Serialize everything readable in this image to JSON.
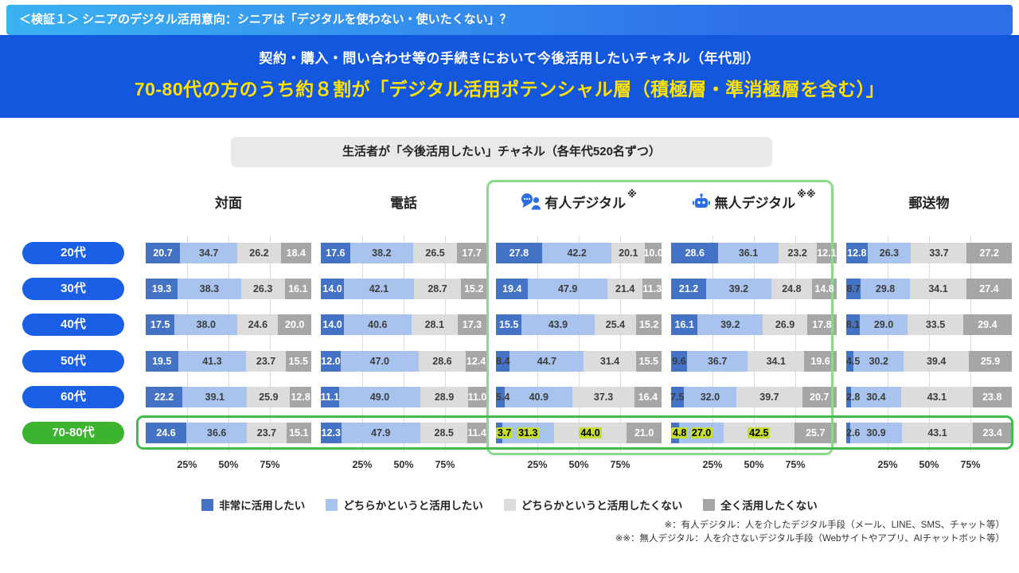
{
  "header": {
    "top_label": "＜検証１＞ シニアのデジタル活用意向：シニアは「デジタルを使わない・使いたくない」？",
    "subtitle": "契約・購入・問い合わせ等の手続きにおいて今後活用したいチャネル（年代別）",
    "headline": "70-80代の方のうち約８割が「デジタル活用ポテンシャル層（積極層・準消極層を含む）」"
  },
  "chart_title": "生活者が「今後活用したい」チャネル（各年代520名ずつ）",
  "colors": {
    "band_blue": "#1457DF",
    "headline_yellow": "#FFE200",
    "pill_blue": "#1A5FE6",
    "pill_green": "#3CB42F",
    "frame_green_light": "#8BD88F",
    "frame_green": "#43BC4D",
    "highlight": "#C4DD2E"
  },
  "legend": [
    {
      "label": "非常に活用したい",
      "color": "#4472C4"
    },
    {
      "label": "どちらかというと活用したい",
      "color": "#A8C4EE"
    },
    {
      "label": "どちらかというと活用したくない",
      "color": "#DCDCDC"
    },
    {
      "label": "全く活用したくない",
      "color": "#A6A6A6"
    }
  ],
  "footnotes": [
    "※：有人デジタル：人を介したデジタル手段（メール、LINE、SMS、チャット等）",
    "※※：無人デジタル：人を介さないデジタル手段（Webサイトやアプリ、AIチャットボット等）"
  ],
  "chart_data": {
    "type": "bar",
    "stacked": true,
    "orientation": "horizontal",
    "unit": "%",
    "xlim": [
      0,
      100
    ],
    "x_ticks": [
      "25%",
      "50%",
      "75%"
    ],
    "age_groups": [
      "20代",
      "30代",
      "40代",
      "50代",
      "60代",
      "70-80代"
    ],
    "segments": [
      "非常に活用したい",
      "どちらかというと活用したい",
      "どちらかというと活用したくない",
      "全く活用したくない"
    ],
    "segment_colors": [
      "#4472C4",
      "#A8C4EE",
      "#DCDCDC",
      "#A6A6A6"
    ],
    "channels": [
      {
        "name": "対面",
        "rows": [
          [
            20.7,
            34.7,
            26.2,
            18.4
          ],
          [
            19.3,
            38.3,
            26.3,
            16.1
          ],
          [
            17.5,
            38.0,
            24.6,
            20.0
          ],
          [
            19.5,
            41.3,
            23.7,
            15.5
          ],
          [
            22.2,
            39.1,
            25.9,
            12.8
          ],
          [
            24.6,
            36.6,
            23.7,
            15.1
          ]
        ]
      },
      {
        "name": "電話",
        "rows": [
          [
            17.6,
            38.2,
            26.5,
            17.7
          ],
          [
            14.0,
            42.1,
            28.7,
            15.2
          ],
          [
            14.0,
            40.6,
            28.1,
            17.3
          ],
          [
            12.0,
            47.0,
            28.6,
            12.4
          ],
          [
            11.1,
            49.0,
            28.9,
            11.0
          ],
          [
            12.3,
            47.9,
            28.5,
            11.4
          ]
        ]
      },
      {
        "name": "有人デジタル",
        "icon": "person-chat",
        "note": "※",
        "rows": [
          [
            27.8,
            42.2,
            20.1,
            10.0
          ],
          [
            19.4,
            47.9,
            21.4,
            11.3
          ],
          [
            15.5,
            43.9,
            25.4,
            15.2
          ],
          [
            8.4,
            44.7,
            31.4,
            15.5
          ],
          [
            5.4,
            40.9,
            37.3,
            16.4
          ],
          [
            3.7,
            31.3,
            44.0,
            21.0
          ]
        ],
        "highlight_row": 5,
        "highlight_segments": [
          0,
          1,
          2
        ]
      },
      {
        "name": "無人デジタル",
        "icon": "robot",
        "note": "※※",
        "rows": [
          [
            28.6,
            36.1,
            23.2,
            12.1
          ],
          [
            21.2,
            39.2,
            24.8,
            14.8
          ],
          [
            16.1,
            39.2,
            26.9,
            17.8
          ],
          [
            9.6,
            36.7,
            34.1,
            19.6
          ],
          [
            7.5,
            32.0,
            39.7,
            20.7
          ],
          [
            4.8,
            27.0,
            42.5,
            25.7
          ]
        ],
        "highlight_row": 5,
        "highlight_segments": [
          0,
          1,
          2
        ]
      },
      {
        "name": "郵送物",
        "rows": [
          [
            12.8,
            26.3,
            33.7,
            27.2
          ],
          [
            8.7,
            29.8,
            34.1,
            27.4
          ],
          [
            8.1,
            29.0,
            33.5,
            29.4
          ],
          [
            4.5,
            30.2,
            39.4,
            25.9
          ],
          [
            2.8,
            30.4,
            43.1,
            23.8
          ],
          [
            2.6,
            30.9,
            43.1,
            23.4
          ]
        ]
      }
    ]
  }
}
